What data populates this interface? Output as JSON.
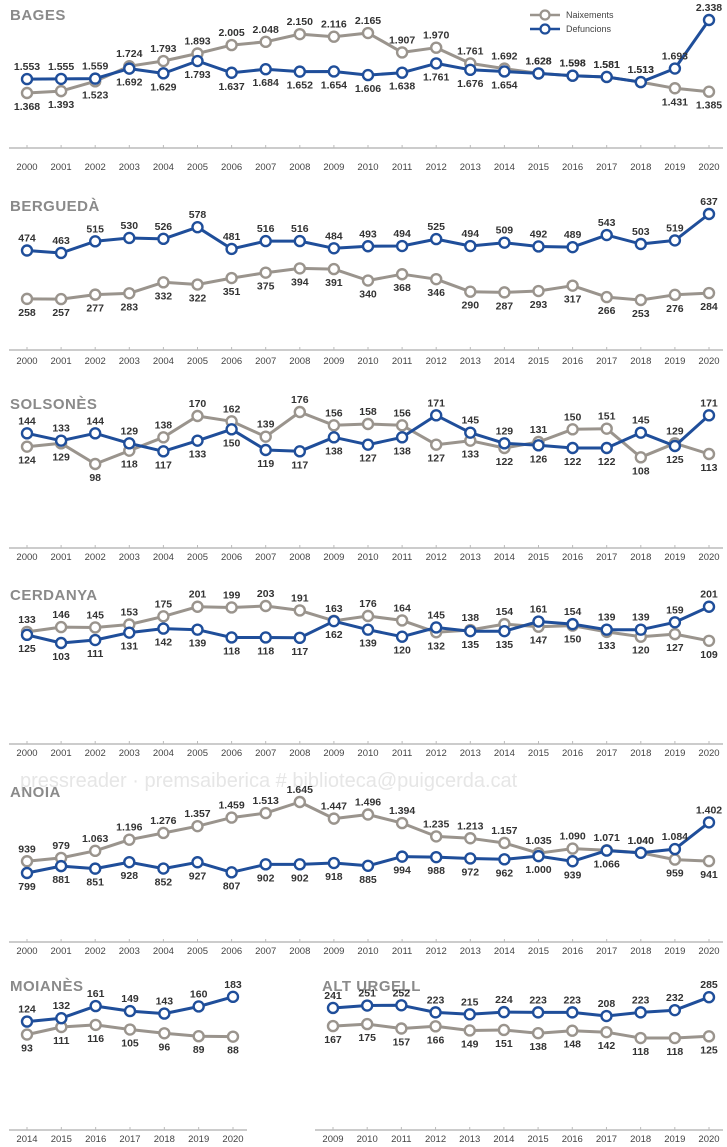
{
  "colors": {
    "naixements": "#9a948d",
    "defuncions": "#1f4e9a"
  },
  "watermark": "pressreader · premsaiberica # biblioteca@puigcerda.cat",
  "legend": {
    "naixements": "Naixements",
    "defuncions": "Defuncions"
  },
  "chart_data": [
    {
      "type": "line",
      "title": "BAGES",
      "x": [
        "2000",
        "2001",
        "2002",
        "2003",
        "2004",
        "2005",
        "2006",
        "2007",
        "2008",
        "2009",
        "2010",
        "2011",
        "2012",
        "2013",
        "2014",
        "2015",
        "2016",
        "2017",
        "2018",
        "2019",
        "2020"
      ],
      "series": [
        {
          "name": "Naixements",
          "values": [
            1368,
            1393,
            1523,
            1724,
            1793,
            1893,
            2005,
            2048,
            2150,
            2116,
            2165,
            1907,
            1970,
            1761,
            1692,
            1628,
            1598,
            1581,
            1513,
            1431,
            1385
          ],
          "labels": [
            "1.368",
            "1.393",
            "1.523",
            "1.724",
            "1.793",
            "1.893",
            "2.005",
            "2.048",
            "2.150",
            "2.116",
            "2.165",
            "1.907",
            "1.970",
            "1.761",
            "1.692",
            "1.628",
            "1.598",
            "1.581",
            "1.513",
            "1.431",
            "1.385"
          ]
        },
        {
          "name": "Defuncions",
          "values": [
            1553,
            1555,
            1559,
            1692,
            1629,
            1793,
            1637,
            1684,
            1652,
            1654,
            1606,
            1638,
            1761,
            1676,
            1654,
            1628,
            1598,
            1581,
            1513,
            1693,
            2338
          ],
          "labels": [
            "1.553",
            "1.555",
            "1.559",
            "1.692",
            "1.629",
            "1.793",
            "1.637",
            "1.684",
            "1.652",
            "1.654",
            "1.606",
            "1.638",
            "1.761",
            "1.676",
            "1.654",
            "1.628",
            "1.598",
            "1.581",
            "1.513",
            "1.693",
            "2.338"
          ]
        }
      ]
    },
    {
      "type": "line",
      "title": "BERGUEDÀ",
      "x": [
        "2000",
        "2001",
        "2002",
        "2003",
        "2004",
        "2005",
        "2006",
        "2007",
        "2008",
        "2009",
        "2010",
        "2011",
        "2012",
        "2013",
        "2014",
        "2015",
        "2016",
        "2017",
        "2018",
        "2019",
        "2020"
      ],
      "series": [
        {
          "name": "Naixements",
          "values": [
            258,
            257,
            277,
            283,
            332,
            322,
            351,
            375,
            394,
            391,
            340,
            368,
            346,
            290,
            287,
            293,
            317,
            266,
            253,
            276,
            284
          ]
        },
        {
          "name": "Defuncions",
          "values": [
            474,
            463,
            515,
            530,
            526,
            578,
            481,
            516,
            516,
            484,
            493,
            494,
            525,
            494,
            509,
            492,
            489,
            543,
            503,
            519,
            637
          ]
        }
      ]
    },
    {
      "type": "line",
      "title": "SOLSONÈS",
      "x": [
        "2000",
        "2001",
        "2002",
        "2003",
        "2004",
        "2005",
        "2006",
        "2007",
        "2008",
        "2009",
        "2010",
        "2011",
        "2012",
        "2013",
        "2014",
        "2015",
        "2016",
        "2017",
        "2018",
        "2019",
        "2020"
      ],
      "series": [
        {
          "name": "Naixements",
          "values": [
            124,
            129,
            98,
            118,
            138,
            170,
            162,
            139,
            176,
            156,
            158,
            156,
            127,
            133,
            122,
            131,
            150,
            151,
            108,
            129,
            113
          ]
        },
        {
          "name": "Defuncions",
          "values": [
            144,
            133,
            144,
            129,
            117,
            133,
            150,
            119,
            117,
            138,
            127,
            138,
            171,
            145,
            129,
            126,
            122,
            122,
            145,
            125,
            171
          ]
        }
      ]
    },
    {
      "type": "line",
      "title": "CERDANYA",
      "x": [
        "2000",
        "2001",
        "2002",
        "2003",
        "2004",
        "2005",
        "2006",
        "2007",
        "2008",
        "2009",
        "2010",
        "2011",
        "2012",
        "2013",
        "2014",
        "2015",
        "2016",
        "2017",
        "2018",
        "2019",
        "2020"
      ],
      "series": [
        {
          "name": "Naixements",
          "values": [
            133,
            146,
            145,
            153,
            175,
            201,
            199,
            203,
            191,
            163,
            176,
            164,
            132,
            138,
            154,
            147,
            150,
            133,
            120,
            127,
            109
          ]
        },
        {
          "name": "Defuncions",
          "values": [
            125,
            103,
            111,
            131,
            142,
            139,
            118,
            118,
            117,
            162,
            139,
            120,
            145,
            135,
            135,
            161,
            154,
            139,
            139,
            159,
            201
          ]
        }
      ]
    },
    {
      "type": "line",
      "title": "ANOIA",
      "x": [
        "2000",
        "2001",
        "2002",
        "2003",
        "2004",
        "2005",
        "2006",
        "2007",
        "2008",
        "2009",
        "2010",
        "2011",
        "2012",
        "2013",
        "2014",
        "2015",
        "2016",
        "2017",
        "2018",
        "2019",
        "2020"
      ],
      "series": [
        {
          "name": "Naixements",
          "values": [
            939,
            979,
            1063,
            1196,
            1276,
            1357,
            1459,
            1513,
            1645,
            1447,
            1496,
            1394,
            1235,
            1213,
            1157,
            1035,
            1090,
            1071,
            1040,
            959,
            941
          ],
          "labels": [
            "939",
            "979",
            "1.063",
            "1.196",
            "1.276",
            "1.357",
            "1.459",
            "1.513",
            "1.645",
            "1.447",
            "1.496",
            "1.394",
            "1.235",
            "1.213",
            "1.157",
            "1.035",
            "1.090",
            "1.071",
            "1.040",
            "959",
            "941"
          ]
        },
        {
          "name": "Defuncions",
          "values": [
            799,
            881,
            851,
            928,
            852,
            927,
            807,
            902,
            902,
            918,
            885,
            994,
            988,
            972,
            962,
            1000,
            939,
            1066,
            1040,
            1084,
            1402
          ],
          "labels": [
            "799",
            "881",
            "851",
            "928",
            "852",
            "927",
            "807",
            "902",
            "902",
            "918",
            "885",
            "994",
            "988",
            "972",
            "962",
            "1.000",
            "939",
            "1.066",
            "1.040",
            "1.084",
            "1.402"
          ]
        }
      ]
    },
    {
      "type": "line",
      "title": "MOIANÈS",
      "x": [
        "2014",
        "2015",
        "2016",
        "2017",
        "2018",
        "2019",
        "2020"
      ],
      "series": [
        {
          "name": "Naixements",
          "values": [
            93,
            111,
            116,
            105,
            96,
            89,
            88
          ]
        },
        {
          "name": "Defuncions",
          "values": [
            124,
            132,
            161,
            149,
            143,
            160,
            183
          ]
        }
      ]
    },
    {
      "type": "line",
      "title": "ALT URGELL",
      "x": [
        "2009",
        "2010",
        "2011",
        "2012",
        "2013",
        "2014",
        "2015",
        "2016",
        "2017",
        "2018",
        "2019",
        "2020"
      ],
      "series": [
        {
          "name": "Naixements",
          "values": [
            167,
            175,
            157,
            166,
            149,
            151,
            138,
            148,
            142,
            118,
            118,
            125
          ]
        },
        {
          "name": "Defuncions",
          "values": [
            241,
            251,
            252,
            223,
            215,
            224,
            223,
            223,
            208,
            223,
            232,
            285
          ]
        }
      ]
    }
  ]
}
